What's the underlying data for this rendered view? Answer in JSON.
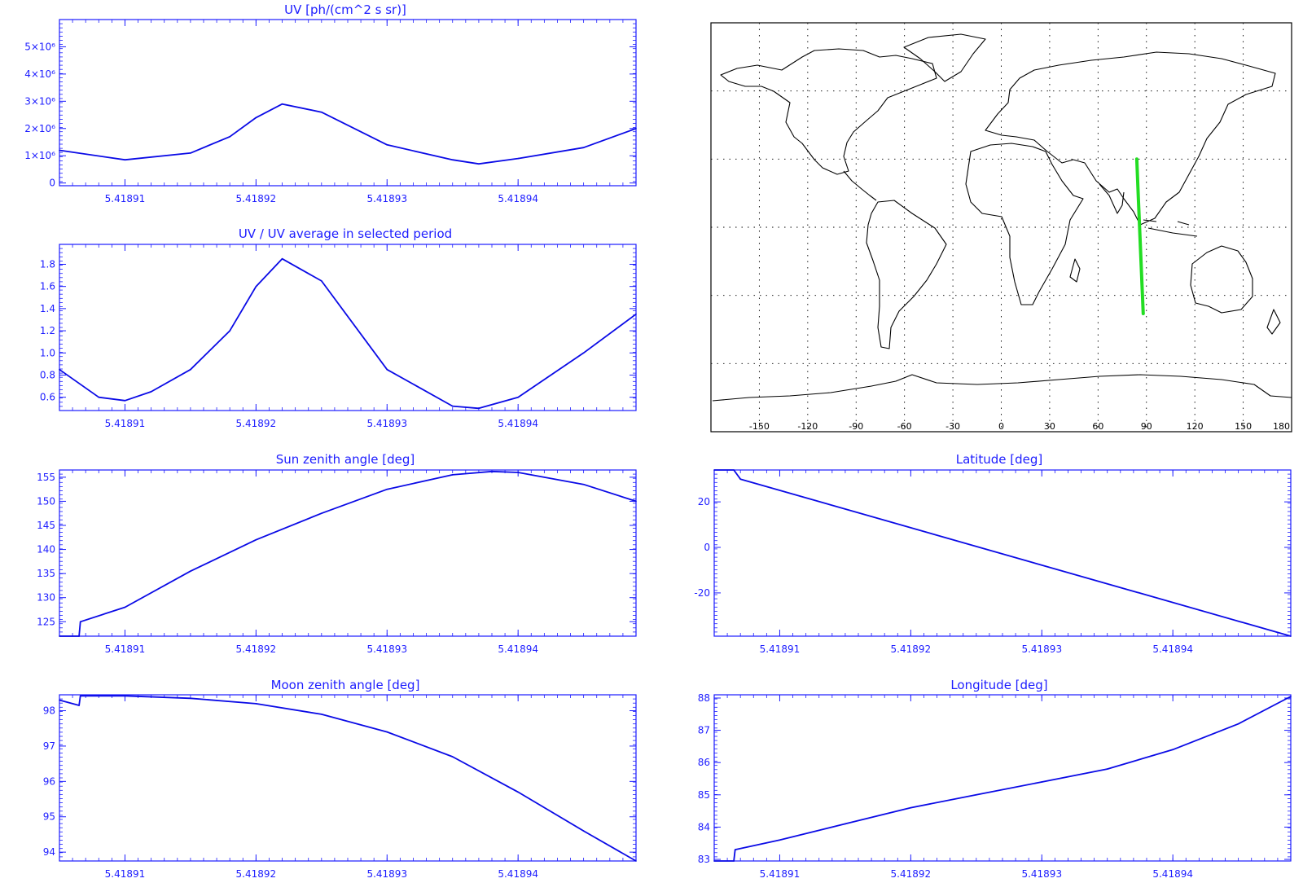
{
  "colors": {
    "axis": "#1c1cff",
    "line": "#0a0ae6",
    "track": "#22dd22",
    "map": "#000000",
    "grid": "#000000"
  },
  "x_axis": {
    "range": [
      5.418905,
      5.418949
    ],
    "ticks": [
      "5.41891",
      "5.41892",
      "5.41893",
      "5.41894"
    ],
    "tick_values": [
      5.41891,
      5.41892,
      5.41893,
      5.41894
    ]
  },
  "chart_data": [
    {
      "id": "uv",
      "type": "line",
      "title": "UV [ph/(cm^2 s sr)]",
      "xlim": [
        5.418905,
        5.418949
      ],
      "ylim": [
        -100000,
        6000000
      ],
      "yticks": [
        "0",
        "1×10⁶",
        "2×10⁶",
        "3×10⁶",
        "4×10⁶",
        "5×10⁶"
      ],
      "ytick_values": [
        0,
        1000000,
        2000000,
        3000000,
        4000000,
        5000000
      ],
      "x": [
        5.418905,
        5.41891,
        5.418915,
        5.418918,
        5.41892,
        5.418922,
        5.418925,
        5.41893,
        5.418935,
        5.418937,
        5.41894,
        5.418945,
        5.418949
      ],
      "values": [
        1200000,
        850000,
        1100000,
        1700000,
        2400000,
        2900000,
        2600000,
        1400000,
        850000,
        700000,
        900000,
        1300000,
        2000000
      ]
    },
    {
      "id": "ratio",
      "type": "line",
      "title": "UV / UV average in selected period",
      "xlim": [
        5.418905,
        5.418949
      ],
      "ylim": [
        0.48,
        1.98
      ],
      "yticks": [
        "0.6",
        "0.8",
        "1.0",
        "1.2",
        "1.4",
        "1.6",
        "1.8"
      ],
      "ytick_values": [
        0.6,
        0.8,
        1.0,
        1.2,
        1.4,
        1.6,
        1.8
      ],
      "x": [
        5.418905,
        5.418908,
        5.41891,
        5.418912,
        5.418915,
        5.418918,
        5.41892,
        5.418922,
        5.418925,
        5.41893,
        5.418935,
        5.418937,
        5.41894,
        5.418945,
        5.418949
      ],
      "values": [
        0.85,
        0.6,
        0.57,
        0.65,
        0.85,
        1.2,
        1.6,
        1.85,
        1.65,
        0.85,
        0.52,
        0.5,
        0.6,
        1.0,
        1.35
      ]
    },
    {
      "id": "sun",
      "type": "line",
      "title": "Sun zenith angle [deg]",
      "xlim": [
        5.418905,
        5.418949
      ],
      "ylim": [
        122,
        156.5
      ],
      "yticks": [
        "125",
        "130",
        "135",
        "140",
        "145",
        "150",
        "155"
      ],
      "ytick_values": [
        125,
        130,
        135,
        140,
        145,
        150,
        155
      ],
      "x": [
        5.418905,
        5.4189065,
        5.4189066,
        5.41891,
        5.418915,
        5.41892,
        5.418925,
        5.41893,
        5.418935,
        5.418938,
        5.41894,
        5.418945,
        5.418949
      ],
      "values": [
        122,
        122,
        125,
        128,
        135.5,
        142,
        147.5,
        152.5,
        155.5,
        156.2,
        156,
        153.5,
        150
      ]
    },
    {
      "id": "moon",
      "type": "line",
      "title": "Moon zenith angle [deg]",
      "xlim": [
        5.418905,
        5.418949
      ],
      "ylim": [
        93.75,
        98.45
      ],
      "yticks": [
        "94",
        "95",
        "96",
        "97",
        "98"
      ],
      "ytick_values": [
        94,
        95,
        96,
        97,
        98
      ],
      "x": [
        5.418905,
        5.4189065,
        5.4189066,
        5.41891,
        5.418915,
        5.41892,
        5.418925,
        5.41893,
        5.418935,
        5.41894,
        5.418945,
        5.418949
      ],
      "values": [
        98.3,
        98.15,
        98.42,
        98.42,
        98.35,
        98.2,
        97.9,
        97.4,
        96.7,
        95.7,
        94.6,
        93.75
      ]
    },
    {
      "id": "lat",
      "type": "line",
      "title": "Latitude [deg]",
      "xlim": [
        5.418905,
        5.418949
      ],
      "ylim": [
        -39,
        34
      ],
      "yticks": [
        "-20",
        "0",
        "20"
      ],
      "ytick_values": [
        -20,
        0,
        20
      ],
      "x": [
        5.418905,
        5.4189065,
        5.418907,
        5.418949
      ],
      "values": [
        34,
        34,
        30,
        -39
      ]
    },
    {
      "id": "lon",
      "type": "line",
      "title": "Longitude [deg]",
      "xlim": [
        5.418905,
        5.418949
      ],
      "ylim": [
        82.95,
        88.1
      ],
      "yticks": [
        "83",
        "84",
        "85",
        "86",
        "87",
        "88"
      ],
      "ytick_values": [
        83,
        84,
        85,
        86,
        87,
        88
      ],
      "x": [
        5.418905,
        5.4189065,
        5.4189066,
        5.41891,
        5.418915,
        5.41892,
        5.418925,
        5.41893,
        5.418935,
        5.41894,
        5.418945,
        5.418949
      ],
      "values": [
        82.95,
        82.95,
        83.3,
        83.6,
        84.1,
        84.6,
        85.0,
        85.4,
        85.8,
        86.4,
        87.2,
        88.05
      ]
    }
  ],
  "map": {
    "lon_ticks": [
      "-150",
      "-120",
      "-90",
      "-60",
      "-30",
      "0",
      "30",
      "60",
      "90",
      "120",
      "150",
      "180"
    ],
    "lon_tick_values": [
      -150,
      -120,
      -90,
      -60,
      -30,
      0,
      30,
      60,
      90,
      120,
      150,
      180
    ],
    "lon_range": [
      -180,
      180
    ],
    "lat_range": [
      -90,
      90
    ],
    "grid_lon": [
      -150,
      -120,
      -90,
      -60,
      -30,
      0,
      30,
      60,
      90,
      120,
      150
    ],
    "grid_lat": [
      -60,
      -30,
      0,
      30,
      60
    ],
    "track": {
      "lon": [
        84,
        85,
        86,
        87,
        88
      ],
      "lat": [
        30,
        13,
        -4,
        -21,
        -38
      ]
    }
  }
}
